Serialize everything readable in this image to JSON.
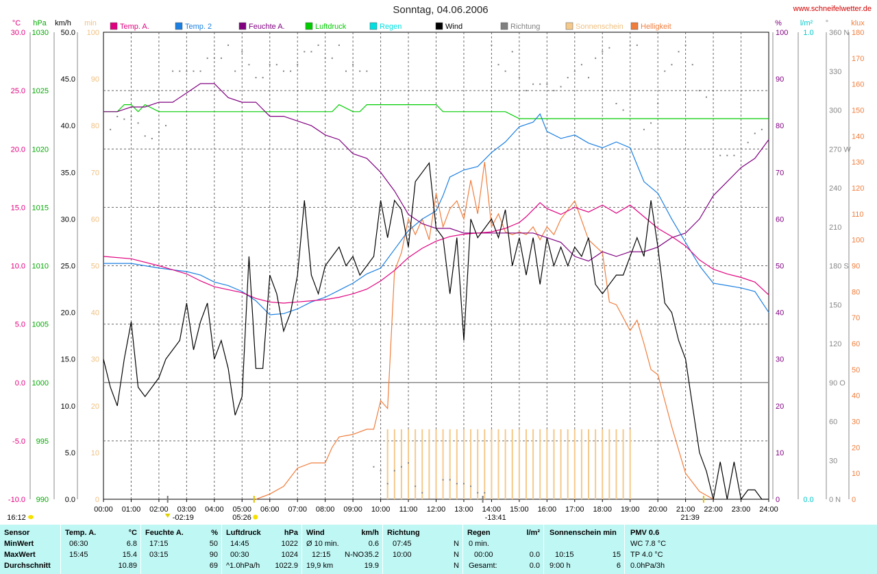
{
  "chart_data": {
    "type": "line",
    "title": "Sonntag, 04.06.2006",
    "source": "www.schneifelwetter.de",
    "x_ticks": [
      "00:00",
      "01:00",
      "02:00",
      "03:00",
      "04:00",
      "05:00",
      "06:00",
      "07:00",
      "08:00",
      "09:00",
      "10:00",
      "11:00",
      "12:00",
      "13:00",
      "14:00",
      "15:00",
      "16:00",
      "17:00",
      "18:00",
      "19:00",
      "20:00",
      "21:00",
      "22:00",
      "23:00",
      "24:00"
    ],
    "xlim": [
      0,
      24
    ],
    "axes": {
      "temp": {
        "unit": "°C",
        "min": -10,
        "max": 30,
        "ticks": [
          "30.0",
          "25.0",
          "20.0",
          "15.0",
          "10.0",
          "5.0",
          "0.0",
          "-5.0",
          "-10.0"
        ]
      },
      "pressure": {
        "unit": "hPa",
        "min": 990,
        "max": 1030,
        "ticks": [
          "1030",
          "1025",
          "1020",
          "1015",
          "1010",
          "1005",
          "1000",
          "995",
          "990"
        ]
      },
      "wind": {
        "unit": "km/h",
        "min": 0,
        "max": 50,
        "ticks": [
          "50.0",
          "45.0",
          "40.0",
          "35.0",
          "30.0",
          "25.0",
          "20.0",
          "15.0",
          "10.0",
          "5.0",
          "0.0"
        ]
      },
      "sunmin": {
        "unit": "min",
        "min": 0,
        "max": 100,
        "ticks": [
          "100",
          "90",
          "80",
          "70",
          "60",
          "50",
          "40",
          "30",
          "20",
          "10",
          "0"
        ]
      },
      "humidity": {
        "unit": "%",
        "min": 0,
        "max": 100,
        "ticks": [
          "100",
          "90",
          "80",
          "70",
          "60",
          "50",
          "40",
          "30",
          "20",
          "10",
          "0"
        ]
      },
      "rain": {
        "unit": "l/m²",
        "max_label": "1.0",
        "min_label": "0.0"
      },
      "direction": {
        "unit": "°",
        "min": 0,
        "max": 360,
        "ticks": [
          "360 N",
          "330",
          "300",
          "270 W",
          "240",
          "210",
          "180 S",
          "150",
          "120",
          "90  O",
          "60",
          "30",
          "0   N"
        ]
      },
      "lux": {
        "unit": "klux",
        "min": 0,
        "max": 180,
        "ticks": [
          "180",
          "170",
          "160",
          "150",
          "140",
          "130",
          "120",
          "110",
          "100",
          "90",
          "80",
          "70",
          "60",
          "50",
          "40",
          "30",
          "20",
          "10",
          "0"
        ]
      }
    },
    "legend": [
      {
        "name": "Temp. A.",
        "color": "#e0007f"
      },
      {
        "name": "Temp. 2",
        "color": "#1a7fe0"
      },
      {
        "name": "Feuchte A.",
        "color": "#800080"
      },
      {
        "name": "Luftdruck",
        "color": "#00cc00"
      },
      {
        "name": "Regen",
        "color": "#00e0e0"
      },
      {
        "name": "Wind",
        "color": "#000000"
      },
      {
        "name": "Richtung",
        "color": "#808080"
      },
      {
        "name": "Sonnenschein",
        "color": "#f5c98a"
      },
      {
        "name": "Helligkeit",
        "color": "#f07d3c"
      }
    ],
    "markers": {
      "sunrise": "05:26",
      "sunset": "21:39",
      "moonrise": "02:19",
      "moonset": "13:41",
      "moon_left": "16:12"
    },
    "series": [
      {
        "name": "Temp. A.",
        "axis": "temp",
        "color": "#e0007f",
        "x": [
          0,
          1,
          2,
          3,
          3.5,
          4,
          5,
          5.5,
          6,
          6.5,
          7,
          7.5,
          8,
          8.5,
          9,
          9.5,
          10,
          10.5,
          11,
          11.5,
          12,
          12.5,
          13,
          13.5,
          14,
          14.5,
          15,
          15.25,
          15.5,
          15.75,
          16,
          16.5,
          17,
          17.5,
          18,
          18.5,
          19,
          19.5,
          20,
          20.5,
          21,
          21.5,
          22,
          22.5,
          23,
          23.5,
          24
        ],
        "y": [
          10.8,
          10.6,
          10.0,
          9.3,
          8.7,
          8.2,
          7.7,
          7.2,
          6.9,
          6.8,
          6.9,
          7.0,
          7.1,
          7.3,
          7.6,
          8.0,
          8.7,
          9.6,
          10.7,
          11.5,
          12.1,
          12.5,
          12.7,
          12.8,
          12.9,
          13.2,
          13.7,
          14.2,
          14.8,
          15.4,
          14.9,
          14.4,
          15.0,
          14.6,
          15.2,
          14.5,
          15.2,
          14.2,
          13.2,
          12.5,
          11.7,
          10.5,
          9.7,
          9.3,
          9.0,
          8.6,
          7.5
        ]
      },
      {
        "name": "Temp. 2",
        "axis": "temp",
        "color": "#1a7fe0",
        "x": [
          0,
          1,
          2,
          3,
          3.5,
          4,
          4.5,
          5,
          5.5,
          6,
          6.5,
          7,
          7.5,
          8,
          8.5,
          9,
          9.5,
          10,
          10.5,
          11,
          11.5,
          12,
          12.25,
          12.5,
          13,
          13.5,
          14,
          14.5,
          15,
          15.5,
          15.75,
          16,
          16.5,
          17,
          17.5,
          18,
          18.5,
          19,
          19.5,
          20,
          20.5,
          21,
          21.5,
          22,
          22.5,
          23,
          23.5,
          24
        ],
        "y": [
          10.2,
          10.2,
          9.8,
          9.5,
          9.2,
          8.6,
          8.3,
          7.8,
          7.0,
          5.8,
          5.9,
          6.3,
          6.9,
          7.3,
          7.9,
          8.5,
          9.3,
          9.8,
          11.4,
          13.0,
          14.0,
          14.7,
          16.0,
          17.6,
          18.2,
          18.5,
          19.7,
          20.6,
          21.9,
          22.3,
          23.0,
          21.5,
          20.9,
          21.2,
          20.5,
          20.1,
          20.6,
          20.1,
          17.2,
          16.2,
          14.0,
          12.0,
          10.0,
          8.5,
          8.3,
          8.1,
          7.8,
          6.0
        ]
      },
      {
        "name": "Feuchte A.",
        "axis": "humidity",
        "color": "#800080",
        "x": [
          0,
          0.5,
          1,
          1.5,
          2,
          2.5,
          3,
          3.5,
          4,
          4.5,
          5,
          5.5,
          6,
          6.5,
          7,
          7.5,
          8,
          8.5,
          9,
          9.5,
          10,
          10.5,
          11,
          11.5,
          12,
          12.5,
          13,
          13.5,
          14,
          14.5,
          15,
          15.5,
          16,
          16.5,
          17,
          17.5,
          18,
          18.5,
          19,
          19.5,
          20,
          20.5,
          21,
          21.5,
          22,
          22.5,
          23,
          23.5,
          24
        ],
        "y": [
          83,
          83,
          84,
          84,
          85,
          85,
          87,
          89,
          89,
          86,
          85,
          85,
          82,
          82,
          81,
          80,
          78,
          77,
          74,
          73,
          70,
          66,
          61,
          59,
          58,
          58,
          57,
          57,
          57,
          57,
          57,
          57,
          56,
          55,
          52,
          51,
          53,
          52,
          53,
          53,
          54,
          56,
          57,
          60,
          65,
          68,
          71,
          73,
          77
        ]
      },
      {
        "name": "Luftdruck",
        "axis": "pressure",
        "color": "#00cc00",
        "x": [
          0,
          0.5,
          0.75,
          1,
          1.25,
          1.5,
          2,
          3,
          4,
          5,
          6,
          7,
          8,
          8.25,
          8.5,
          9,
          9.25,
          9.5,
          10,
          11,
          12,
          12.25,
          13,
          14,
          14.5,
          15,
          16,
          17,
          18,
          19,
          20,
          21,
          22,
          23,
          24
        ],
        "y": [
          1023.2,
          1023.2,
          1023.8,
          1023.8,
          1023.2,
          1023.8,
          1023.2,
          1023.2,
          1023.2,
          1023.2,
          1023.2,
          1023.2,
          1023.2,
          1023.2,
          1023.8,
          1023.2,
          1023.2,
          1023.8,
          1023.8,
          1023.8,
          1023.8,
          1023.2,
          1023.2,
          1023.2,
          1023.2,
          1022.6,
          1022.6,
          1022.6,
          1022.6,
          1022.6,
          1022.6,
          1022.6,
          1022.6,
          1022.6,
          1022.6
        ]
      },
      {
        "name": "Wind",
        "axis": "wind",
        "color": "#000000",
        "x": [
          0,
          0.25,
          0.5,
          0.75,
          1,
          1.25,
          1.5,
          1.75,
          2,
          2.25,
          2.5,
          2.75,
          3,
          3.25,
          3.5,
          3.75,
          4,
          4.25,
          4.5,
          4.75,
          5,
          5.25,
          5.5,
          5.75,
          6,
          6.25,
          6.5,
          6.75,
          7,
          7.25,
          7.5,
          7.75,
          8,
          8.25,
          8.5,
          8.75,
          9,
          9.25,
          9.5,
          9.75,
          10,
          10.25,
          10.5,
          10.75,
          11,
          11.25,
          11.5,
          11.75,
          12,
          12.25,
          12.5,
          12.75,
          13,
          13.25,
          13.5,
          13.75,
          14,
          14.25,
          14.5,
          14.75,
          15,
          15.25,
          15.5,
          15.75,
          16,
          16.25,
          16.5,
          16.75,
          17,
          17.25,
          17.5,
          17.75,
          18,
          18.25,
          18.5,
          18.75,
          19,
          19.25,
          19.5,
          19.75,
          20,
          20.25,
          20.5,
          20.75,
          21,
          21.25,
          21.5,
          21.75,
          22,
          22.25,
          22.5,
          22.75,
          23,
          23.25,
          23.5,
          23.75,
          24
        ],
        "y": [
          15,
          12,
          10,
          15,
          19,
          12,
          11,
          12,
          13,
          15,
          16,
          17,
          21,
          16,
          19,
          21,
          15,
          17,
          14,
          9,
          11,
          26,
          14,
          14,
          24,
          22,
          18,
          20,
          24,
          32,
          24,
          22,
          25,
          26,
          27,
          25,
          26,
          24,
          25,
          26,
          32,
          28,
          32,
          31,
          27,
          34,
          35,
          36,
          29,
          28,
          22,
          28,
          17,
          30,
          28,
          29,
          30,
          28,
          31,
          25,
          28,
          24,
          28,
          23,
          28,
          25,
          27,
          25,
          27,
          26,
          28,
          23,
          22,
          23,
          24,
          24,
          26,
          28,
          26,
          32,
          27,
          21,
          20,
          17,
          15,
          10,
          5,
          3,
          0,
          4,
          0,
          4,
          0,
          1,
          1,
          0,
          0
        ]
      },
      {
        "name": "Helligkeit",
        "axis": "lux",
        "color": "#f07d3c",
        "x": [
          5.5,
          6,
          6.5,
          7,
          7.5,
          8,
          8.25,
          8.5,
          9,
          9.5,
          9.75,
          10,
          10.25,
          10.5,
          10.75,
          11,
          11.25,
          11.5,
          11.75,
          12,
          12.25,
          12.5,
          12.75,
          13,
          13.25,
          13.5,
          13.75,
          14,
          14.25,
          14.5,
          14.75,
          15,
          15.25,
          15.5,
          15.75,
          16,
          16.25,
          16.5,
          17,
          17.5,
          18,
          18.25,
          18.5,
          18.75,
          19,
          19.25,
          19.5,
          19.75,
          20,
          20.5,
          21,
          21.5,
          22
        ],
        "y": [
          0,
          2,
          5,
          12,
          14,
          14,
          20,
          24,
          25,
          27,
          27,
          38,
          35,
          88,
          95,
          108,
          102,
          108,
          100,
          118,
          105,
          112,
          115,
          108,
          123,
          110,
          130,
          105,
          110,
          103,
          102,
          103,
          102,
          105,
          100,
          105,
          102,
          108,
          115,
          100,
          95,
          76,
          75,
          70,
          65,
          69,
          60,
          50,
          48,
          28,
          10,
          3,
          0
        ]
      },
      {
        "name": "Sonnenschein",
        "axis": "sunmin",
        "color": "#f5c98a",
        "x": [
          10.25,
          19.0
        ],
        "y": [
          15,
          15
        ],
        "note": "bar every 15 min"
      },
      {
        "name": "Richtung",
        "axis": "direction",
        "color": "#808080",
        "style": "dots",
        "x": [
          0.25,
          0.5,
          0.75,
          1,
          1.25,
          1.5,
          1.75,
          2,
          2.25,
          2.5,
          2.75,
          3,
          3.25,
          3.5,
          3.75,
          4,
          4.25,
          4.5,
          4.75,
          5,
          5.25,
          5.5,
          5.75,
          6,
          6.25,
          6.5,
          6.75,
          7,
          7.25,
          7.5,
          7.75,
          8,
          8.25,
          8.5,
          8.75,
          9,
          9.25,
          9.5,
          9.75,
          10,
          10.25,
          10.5,
          10.75,
          11,
          11.25,
          11.5,
          11.75,
          12,
          12.25,
          12.5,
          12.75,
          13,
          13.25,
          13.5,
          13.75,
          14,
          14.25,
          14.5,
          14.75,
          15,
          15.25,
          15.5,
          15.75,
          16,
          16.25,
          16.5,
          16.75,
          17,
          17.25,
          17.5,
          17.75,
          18,
          18.25,
          18.5,
          18.75,
          19,
          19.25,
          19.5,
          19.75,
          20,
          20.25,
          20.5,
          20.75,
          21,
          21.25,
          21.5,
          21.75,
          22,
          22.25,
          22.5,
          22.75,
          23,
          23.25,
          23.5,
          23.75,
          24
        ],
        "y": [
          285,
          295,
          293,
          295,
          290,
          280,
          278,
          283,
          288,
          330,
          330,
          330,
          330,
          330,
          340,
          340,
          340,
          350,
          330,
          345,
          335,
          325,
          325,
          335,
          335,
          330,
          330,
          335,
          345,
          345,
          350,
          340,
          340,
          350,
          330,
          335,
          330,
          330,
          25,
          22,
          12,
          22,
          25,
          28,
          10,
          5,
          0,
          0,
          15,
          15,
          12,
          12,
          10,
          5,
          5,
          350,
          335,
          330,
          345,
          325,
          315,
          320,
          320,
          320,
          315,
          318,
          325,
          330,
          335,
          325,
          340,
          345,
          348,
          305,
          300,
          350,
          350,
          285,
          290,
          305,
          330,
          335,
          345,
          350,
          335,
          315,
          310,
          315,
          265,
          265,
          265,
          270,
          275,
          282,
          285,
          290
        ]
      }
    ]
  },
  "table": {
    "sensor": {
      "header": "Sensor",
      "rows": [
        "MinWert",
        "MaxWert",
        "Durchschnitt"
      ]
    },
    "temp": {
      "header": "Temp. A.",
      "unit": "°C",
      "min_time": "06:30",
      "min_val": "6.8",
      "max_time": "15:45",
      "max_val": "15.4",
      "avg": "10.89"
    },
    "humidity": {
      "header": "Feuchte A.",
      "unit": "%",
      "min_time": "17:15",
      "min_val": "50",
      "max_time": "03:15",
      "max_val": "90",
      "avg": "69"
    },
    "pressure": {
      "header": "Luftdruck",
      "unit": "hPa",
      "min_time": "14:45",
      "min_val": "1022",
      "max_time": "00:30",
      "max_val": "1024",
      "trend": "^1.0hPa/h",
      "avg": "1022.9"
    },
    "wind": {
      "header": "Wind",
      "unit": "km/h",
      "row1_label": "Ø 10 min.",
      "row1_val": "0.6",
      "row2_time": "12:15",
      "row2_dir": "N-NO",
      "row2_val": "35.2",
      "row3_label": "19,9 km",
      "row3_val": "19.9"
    },
    "direction": {
      "header": "Richtung",
      "min_time": "07:45",
      "min_dir": "N",
      "max_time": "10:00",
      "max_dir": "N",
      "avg_dir": "N"
    },
    "rain": {
      "header": "Regen",
      "unit": "l/m²",
      "row1": "0 min.",
      "row2_time": "00:00",
      "row2_val": "0.0",
      "row3_label": "Gesamt:",
      "row3_val": "0.0"
    },
    "sun": {
      "header": "Sonnenschein min",
      "row2_time": "10:15",
      "row2_val": "15",
      "row3_label": "9:00 h",
      "row3_val": "6"
    },
    "pmv": {
      "header": "PMV 0.6",
      "row1": "WC 7.8 °C",
      "row2": "TP 4.0 °C",
      "row3": "0.0hPa/3h"
    }
  }
}
